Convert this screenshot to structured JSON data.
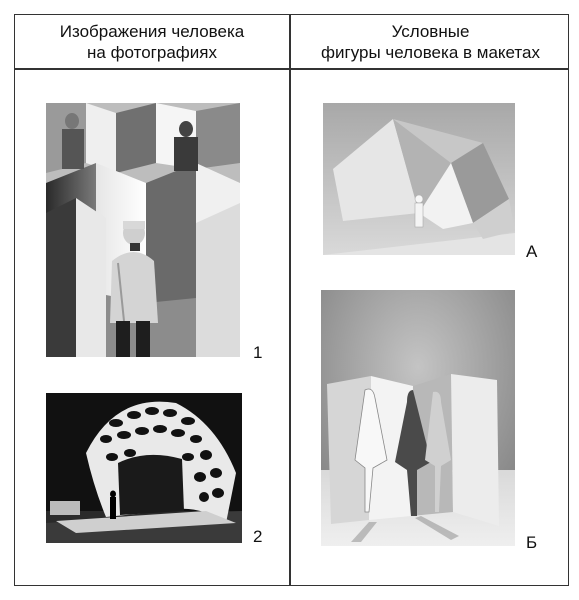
{
  "header": {
    "left_line1": "Изображения человека",
    "left_line2": "на фотографиях",
    "right_line1": "Условные",
    "right_line2": "фигуры человека в макетах"
  },
  "labels": {
    "photo1": "1",
    "photo2": "2",
    "photoA": "А",
    "photoB": "Б"
  }
}
